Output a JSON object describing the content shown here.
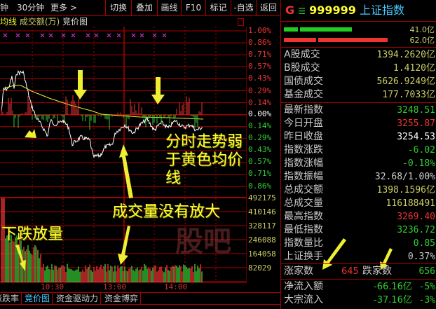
{
  "toolbar": {
    "left": [
      "钟",
      "30分钟",
      "更多 >"
    ],
    "buttons": [
      "切换",
      "叠加",
      "画线",
      "F10",
      "标记",
      "-自选",
      "返回"
    ]
  },
  "subbar": {
    "avg": "均线",
    "volume": "成交额(万)",
    "auction": "竞价图"
  },
  "axis": {
    "price_up": [
      "1.00%",
      "0.86%",
      "0.71%",
      "0.57%",
      "0.43%",
      "0.29%",
      "0.14%"
    ],
    "zero": "0.00%",
    "price_down": [
      "0.14%",
      "0.29%",
      "0.43%",
      "0.57%",
      "0.71%",
      "0.86%"
    ],
    "volume": [
      "492175",
      "410146",
      "328117",
      "246088",
      "164058",
      "82029"
    ],
    "time": [
      "10:30",
      "13:00",
      "14:00"
    ]
  },
  "tabs": {
    "items": [
      "涨跌率",
      "竞价图",
      "资金驱动力",
      "资金博弈"
    ],
    "active": 1
  },
  "annotations": [
    "分时走势弱于黄色均价线",
    "成交量没有放大",
    "下跌放量"
  ],
  "header": {
    "g": "G",
    "menu": "☰",
    "code": "999999",
    "name": "上证指数"
  },
  "bars": {
    "green_value": "41.0亿",
    "red_value": "62.0亿"
  },
  "turnover": [
    {
      "label": "A股成交",
      "value": "1394.2620亿"
    },
    {
      "label": "B股成交",
      "value": "1.4120亿"
    },
    {
      "label": "国债成交",
      "value": "5626.9249亿"
    },
    {
      "label": "基金成交",
      "value": "177.7033亿"
    }
  ],
  "stats": [
    {
      "label": "最新指数",
      "value": "3248.51",
      "color": "#3c3"
    },
    {
      "label": "今日开盘",
      "value": "3255.87",
      "color": "#e33"
    },
    {
      "label": "昨日收盘",
      "value": "3254.53",
      "color": "#fff"
    },
    {
      "label": "指数涨跌",
      "value": "-6.02",
      "color": "#3c3"
    },
    {
      "label": "指数涨幅",
      "value": "-0.18%",
      "color": "#3c3"
    },
    {
      "label": "指数振幅",
      "value": "32.68/1.00%",
      "color": "#ccc"
    },
    {
      "label": "总成交额",
      "value": "1398.1596亿",
      "color": "#cc6"
    },
    {
      "label": "总成交量",
      "value": "116188491",
      "color": "#cc6"
    },
    {
      "label": "最高指数",
      "value": "3269.40",
      "color": "#e33"
    },
    {
      "label": "最低指数",
      "value": "3236.72",
      "color": "#3c3"
    },
    {
      "label": "指数量比",
      "value": "0.85",
      "color": "#3c3"
    },
    {
      "label": "上证换手",
      "value": "0.37%",
      "color": "#ccc"
    }
  ],
  "breadth": {
    "up_label": "涨家数",
    "up": "645",
    "down_label": "跌家数",
    "down": "656"
  },
  "flows": [
    {
      "label": "净流入额",
      "value": "-66.16亿",
      "pct": "-5%"
    },
    {
      "label": "大宗流入",
      "value": "-37.16亿",
      "pct": "-3%"
    }
  ],
  "watermark": "股吧",
  "colors": {
    "up": "#e33",
    "down": "#3c3",
    "grid": "#a00",
    "avg_line": "#ee3",
    "price_line": "#fff"
  }
}
